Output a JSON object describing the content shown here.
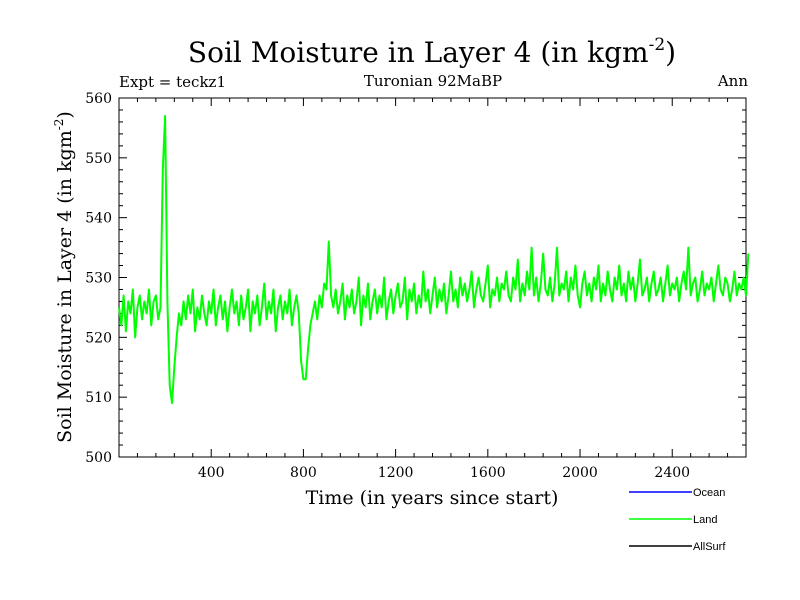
{
  "chart_data": {
    "type": "line",
    "title_main": "Soil Moisture in Layer 4 (in kgm",
    "title_sup": "-2",
    "title_close": ")",
    "subtitle_left": "Expt = teckz1",
    "subtitle_center": "Turonian  92MaBP",
    "subtitle_right": "Ann",
    "xlabel": "Time (in years since start)",
    "ylabel_main": "Soil Moisture in Layer 4 (in kgm",
    "ylabel_sup": "-2",
    "ylabel_close": ")",
    "xlim": [
      0,
      2720
    ],
    "ylim": [
      500,
      560
    ],
    "x_ticks": [
      400,
      800,
      1200,
      1600,
      2000,
      2400
    ],
    "x_tick_labels": [
      "400",
      "800",
      "1200",
      "1600",
      "2000",
      "2400"
    ],
    "y_ticks": [
      500,
      510,
      520,
      530,
      540,
      550,
      560
    ],
    "y_tick_labels": [
      "500",
      "510",
      "520",
      "530",
      "540",
      "550",
      "560"
    ],
    "legend": [
      {
        "name": "Ocean",
        "color": "#0000ff"
      },
      {
        "name": "Land",
        "color": "#00ff00"
      },
      {
        "name": "AllSurf",
        "color": "#000000"
      }
    ],
    "series": [
      {
        "name": "Land",
        "color": "#00ff00",
        "x_start": 0,
        "x_step": 10,
        "values": [
          525,
          522,
          527,
          521,
          526,
          524,
          528,
          520,
          525,
          527,
          523,
          526,
          524,
          528,
          522,
          526,
          527,
          523,
          525,
          548,
          557,
          526,
          512,
          509,
          515,
          520,
          524,
          522,
          526,
          523,
          527,
          524,
          528,
          521,
          525,
          523,
          527,
          524,
          522,
          526,
          524,
          528,
          522,
          525,
          527,
          523,
          526,
          521,
          525,
          528,
          524,
          526,
          522,
          527,
          523,
          525,
          528,
          521,
          526,
          524,
          527,
          522,
          525,
          529,
          523,
          526,
          524,
          528,
          521,
          525,
          527,
          523,
          526,
          524,
          528,
          522,
          525,
          527,
          524,
          516,
          513,
          513,
          518,
          522,
          524,
          526,
          523,
          527,
          525,
          529,
          528,
          536,
          527,
          525,
          528,
          524,
          526,
          529,
          523,
          527,
          525,
          528,
          524,
          526,
          530,
          522,
          527,
          525,
          529,
          523,
          526,
          528,
          524,
          527,
          525,
          530,
          523,
          526,
          528,
          524,
          527,
          529,
          525,
          526,
          530,
          523,
          528,
          526,
          529,
          524,
          527,
          525,
          531,
          526,
          528,
          524,
          527,
          530,
          525,
          528,
          526,
          529,
          524,
          527,
          531,
          526,
          528,
          525,
          530,
          527,
          529,
          526,
          528,
          531,
          525,
          528,
          530,
          527,
          526,
          529,
          532,
          525,
          528,
          527,
          530,
          526,
          529,
          528,
          531,
          527,
          526,
          530,
          528,
          533,
          526,
          529,
          527,
          531,
          528,
          535,
          527,
          530,
          526,
          529,
          534,
          528,
          527,
          530,
          526,
          529,
          535,
          527,
          529,
          528,
          531,
          526,
          530,
          528,
          532,
          527,
          525,
          529,
          531,
          527,
          529,
          526,
          530,
          528,
          532,
          526,
          529,
          527,
          531,
          528,
          526,
          530,
          528,
          532,
          527,
          529,
          526,
          531,
          528,
          530,
          526,
          529,
          533,
          527,
          528,
          530,
          526,
          529,
          531,
          527,
          528,
          530,
          526,
          529,
          532,
          527,
          529,
          528,
          530,
          526,
          529,
          531,
          528,
          535,
          527,
          529,
          530,
          526,
          528,
          531,
          527,
          529,
          528,
          530,
          526,
          529,
          532,
          528,
          527,
          530,
          529,
          526,
          528,
          531,
          527,
          529,
          528,
          530,
          527,
          534
        ]
      }
    ]
  }
}
